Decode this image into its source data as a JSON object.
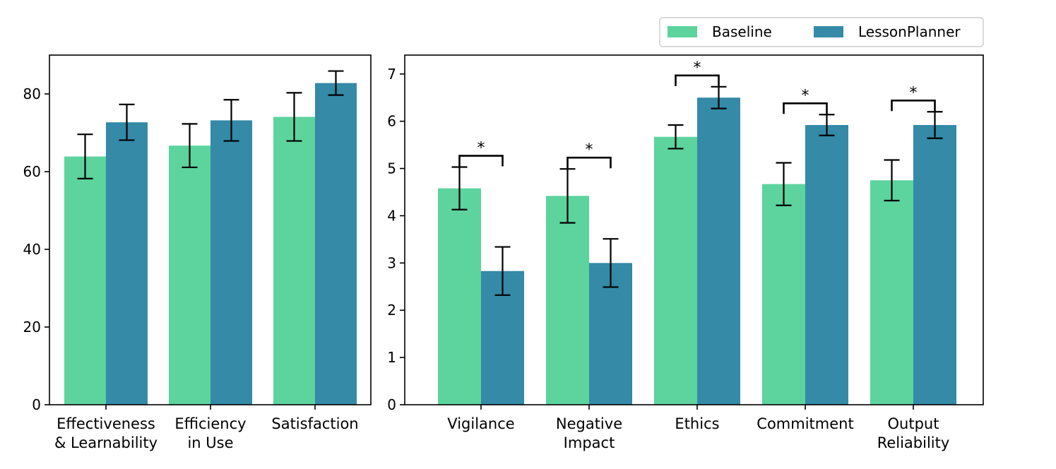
{
  "colors": {
    "baseline": "#5dd39e",
    "lessonplanner": "#348aa7",
    "axis": "#000000"
  },
  "legend": {
    "placement": "top-right",
    "items": [
      {
        "label": "Baseline",
        "color": "#5dd39e"
      },
      {
        "label": "LessonPlanner",
        "color": "#348aa7"
      }
    ]
  },
  "chart_data": [
    {
      "type": "bar",
      "title": "",
      "xlabel": "",
      "ylabel": "",
      "ylim": [
        0,
        90
      ],
      "yticks": [
        0,
        20,
        40,
        60,
        80
      ],
      "ytick_labels": [
        "0",
        "20",
        "40",
        "60",
        "80"
      ],
      "grid": false,
      "categories": [
        {
          "lines": [
            "Effectiveness",
            "& Learnability"
          ]
        },
        {
          "lines": [
            "Efficiency",
            "in Use"
          ]
        },
        {
          "lines": [
            "Satisfaction"
          ]
        }
      ],
      "series": [
        {
          "name": "Baseline",
          "values": [
            63.9,
            66.7,
            74.1
          ],
          "err_low": [
            58.2,
            61.1,
            67.9
          ],
          "err_high": [
            69.6,
            72.3,
            80.3
          ]
        },
        {
          "name": "LessonPlanner",
          "values": [
            72.7,
            73.2,
            82.8
          ],
          "err_low": [
            68.1,
            67.9,
            79.7
          ],
          "err_high": [
            77.3,
            78.5,
            85.9
          ]
        }
      ],
      "significance": []
    },
    {
      "type": "bar",
      "title": "",
      "xlabel": "",
      "ylabel": "",
      "ylim": [
        0,
        7.4
      ],
      "yticks": [
        0,
        1,
        2,
        3,
        4,
        5,
        6,
        7
      ],
      "ytick_labels": [
        "0",
        "1",
        "2",
        "3",
        "4",
        "5",
        "6",
        "7"
      ],
      "grid": false,
      "categories": [
        {
          "lines": [
            "Vigilance"
          ]
        },
        {
          "lines": [
            "Negative",
            "Impact"
          ]
        },
        {
          "lines": [
            "Ethics"
          ]
        },
        {
          "lines": [
            "Commitment"
          ]
        },
        {
          "lines": [
            "Output",
            "Reliability"
          ]
        }
      ],
      "series": [
        {
          "name": "Baseline",
          "values": [
            4.58,
            4.42,
            5.67,
            4.67,
            4.75
          ],
          "err_low": [
            4.13,
            3.85,
            5.42,
            4.22,
            4.32
          ],
          "err_high": [
            5.03,
            4.99,
            5.92,
            5.12,
            5.18
          ]
        },
        {
          "name": "LessonPlanner",
          "values": [
            2.83,
            3.0,
            6.5,
            5.92,
            5.92
          ],
          "err_low": [
            2.32,
            2.49,
            6.27,
            5.7,
            5.64
          ],
          "err_high": [
            3.34,
            3.51,
            6.73,
            6.14,
            6.2
          ]
        }
      ],
      "significance": [
        {
          "category_index": 0,
          "label": "*"
        },
        {
          "category_index": 1,
          "label": "*"
        },
        {
          "category_index": 2,
          "label": "*"
        },
        {
          "category_index": 3,
          "label": "*"
        },
        {
          "category_index": 4,
          "label": "*"
        }
      ]
    }
  ]
}
